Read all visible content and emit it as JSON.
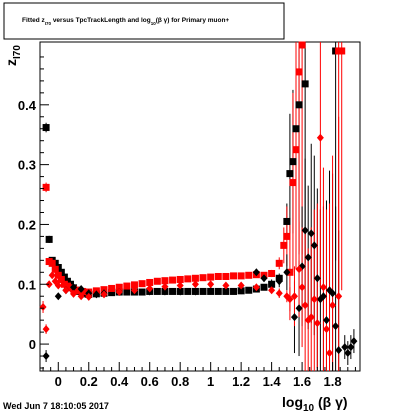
{
  "chart_data": {
    "type": "scatter",
    "title": {
      "prefix": "Fitted  z",
      "sub1": "I70",
      "middle": "  versus TpcTrackLength and log",
      "sub2": "10",
      "suffix": "(β γ) for Primary muon+"
    },
    "xlabel": {
      "main": "log",
      "sub": "10",
      "rest": " (β γ)"
    },
    "ylabel": {
      "main": "z",
      "sub": "I70"
    },
    "xlim": [
      -0.12,
      1.98
    ],
    "ylim": [
      -0.045,
      0.505
    ],
    "x_ticks": [
      0,
      0.2,
      0.4,
      0.6,
      0.8,
      1,
      1.2,
      1.4,
      1.6,
      1.8
    ],
    "x_tick_labels": [
      "0",
      "0.2",
      "0.4",
      "0.6",
      "0.8",
      "1",
      "1.2",
      "1.4",
      "1.6",
      "1.8"
    ],
    "y_ticks": [
      0,
      0.1,
      0.2,
      0.3,
      0.4
    ],
    "y_tick_labels": [
      "0",
      "0.1",
      "0.2",
      "0.3",
      "0.4"
    ],
    "grid": false,
    "legend": "none",
    "series": [
      {
        "marker": "square",
        "color": "#000000",
        "x": [
          -0.08,
          -0.06,
          -0.04,
          -0.02,
          0.0,
          0.02,
          0.04,
          0.06,
          0.08,
          0.1,
          0.12,
          0.14,
          0.16,
          0.18,
          0.2,
          0.25,
          0.3,
          0.35,
          0.4,
          0.45,
          0.5,
          0.55,
          0.6,
          0.65,
          0.7,
          0.75,
          0.8,
          0.85,
          0.9,
          0.95,
          1.0,
          1.05,
          1.1,
          1.15,
          1.2,
          1.25,
          1.3,
          1.35,
          1.4,
          1.45,
          1.5,
          1.52,
          1.54,
          1.56,
          1.58,
          1.62,
          1.82
        ],
        "y": [
          0.362,
          0.175,
          0.14,
          0.135,
          0.128,
          0.12,
          0.112,
          0.105,
          0.1,
          0.094,
          0.09,
          0.088,
          0.086,
          0.084,
          0.083,
          0.084,
          0.085,
          0.086,
          0.087,
          0.087,
          0.087,
          0.087,
          0.088,
          0.088,
          0.088,
          0.088,
          0.088,
          0.088,
          0.088,
          0.088,
          0.088,
          0.088,
          0.088,
          0.088,
          0.089,
          0.09,
          0.092,
          0.095,
          0.1,
          0.11,
          0.205,
          0.285,
          0.305,
          0.36,
          0.4,
          0.435,
          0.49
        ],
        "err": [
          0.008,
          0.006,
          0.004,
          0.003,
          0.002,
          0.002,
          0.002,
          0.002,
          0.002,
          0.002,
          0.002,
          0.002,
          0.002,
          0.002,
          0.002,
          0.002,
          0.002,
          0.002,
          0.002,
          0.002,
          0.002,
          0.002,
          0.002,
          0.002,
          0.002,
          0.002,
          0.002,
          0.002,
          0.002,
          0.002,
          0.002,
          0.002,
          0.002,
          0.002,
          0.002,
          0.003,
          0.004,
          0.005,
          0.006,
          0.008,
          0.03,
          0.1,
          0.12,
          0.2,
          0.25,
          0.3,
          0.35
        ]
      },
      {
        "marker": "square",
        "color": "#ff0000",
        "x": [
          -0.08,
          -0.06,
          -0.04,
          -0.02,
          0.0,
          0.02,
          0.04,
          0.06,
          0.08,
          0.1,
          0.12,
          0.14,
          0.16,
          0.2,
          0.25,
          0.3,
          0.35,
          0.4,
          0.45,
          0.5,
          0.55,
          0.6,
          0.65,
          0.7,
          0.75,
          0.8,
          0.85,
          0.9,
          0.95,
          1.0,
          1.05,
          1.1,
          1.15,
          1.2,
          1.25,
          1.3,
          1.35,
          1.4,
          1.45,
          1.48,
          1.5,
          1.52,
          1.54,
          1.56,
          1.58,
          1.6,
          1.84,
          1.86
        ],
        "y": [
          0.262,
          0.138,
          0.135,
          0.125,
          0.115,
          0.108,
          0.1,
          0.097,
          0.094,
          0.092,
          0.09,
          0.089,
          0.088,
          0.087,
          0.089,
          0.091,
          0.093,
          0.095,
          0.097,
          0.099,
          0.101,
          0.103,
          0.105,
          0.106,
          0.107,
          0.108,
          0.109,
          0.11,
          0.111,
          0.112,
          0.113,
          0.113,
          0.114,
          0.114,
          0.115,
          0.116,
          0.115,
          0.118,
          0.135,
          0.165,
          0.18,
          0.12,
          0.27,
          0.325,
          0.455,
          0.5,
          0.49,
          0.49
        ],
        "err": [
          0.008,
          0.005,
          0.004,
          0.003,
          0.002,
          0.002,
          0.002,
          0.002,
          0.002,
          0.002,
          0.002,
          0.002,
          0.002,
          0.002,
          0.002,
          0.002,
          0.002,
          0.002,
          0.002,
          0.002,
          0.002,
          0.002,
          0.002,
          0.002,
          0.002,
          0.002,
          0.002,
          0.002,
          0.002,
          0.002,
          0.002,
          0.002,
          0.002,
          0.002,
          0.003,
          0.004,
          0.005,
          0.006,
          0.01,
          0.03,
          0.05,
          0.08,
          0.15,
          0.2,
          0.3,
          0.35,
          0.4,
          0.4
        ]
      },
      {
        "marker": "diamond",
        "color": "#000000",
        "x": [
          -0.08,
          0.0,
          0.05,
          0.1,
          0.15,
          0.2,
          0.25,
          0.3,
          0.4,
          0.5,
          0.6,
          0.7,
          0.8,
          0.9,
          1.0,
          1.1,
          1.2,
          1.3,
          1.35,
          1.4,
          1.45,
          1.5,
          1.55,
          1.58,
          1.6,
          1.62,
          1.64,
          1.66,
          1.68,
          1.7,
          1.72,
          1.74,
          1.76,
          1.78,
          1.8,
          1.82,
          1.84,
          1.88,
          1.9,
          1.92,
          1.94
        ],
        "y": [
          -0.02,
          0.08,
          0.09,
          0.095,
          0.092,
          0.085,
          0.083,
          0.085,
          0.087,
          0.088,
          0.088,
          0.088,
          0.088,
          0.088,
          0.089,
          0.09,
          0.09,
          0.12,
          0.11,
          0.1,
          0.105,
          0.12,
          0.045,
          0.06,
          0.13,
          0.19,
          0.145,
          0.185,
          0.165,
          0.11,
          0.075,
          0.08,
          0.04,
          0.09,
          0.085,
          0.03,
          -0.01,
          -0.005,
          -0.015,
          -0.005,
          0.005
        ],
        "err": [
          0.01,
          0.004,
          0.003,
          0.002,
          0.002,
          0.002,
          0.002,
          0.002,
          0.002,
          0.002,
          0.002,
          0.002,
          0.002,
          0.002,
          0.002,
          0.002,
          0.003,
          0.005,
          0.006,
          0.008,
          0.01,
          0.03,
          0.06,
          0.08,
          0.1,
          0.12,
          0.12,
          0.15,
          0.15,
          0.15,
          0.15,
          0.15,
          0.2,
          0.2,
          0.2,
          0.2,
          0.2,
          0.02,
          0.02,
          0.02,
          0.02
        ]
      },
      {
        "marker": "diamond",
        "color": "#ff0000",
        "x": [
          -0.1,
          -0.08,
          -0.06,
          -0.04,
          -0.02,
          0.0,
          0.05,
          0.1,
          0.15,
          0.2,
          0.3,
          0.4,
          0.5,
          0.6,
          0.7,
          0.8,
          0.9,
          1.0,
          1.1,
          1.2,
          1.3,
          1.4,
          1.45,
          1.5,
          1.52,
          1.55,
          1.58,
          1.6,
          1.62,
          1.64,
          1.66,
          1.68,
          1.7,
          1.72,
          1.74,
          1.76,
          1.78,
          1.8,
          1.84
        ],
        "y": [
          0.062,
          0.025,
          0.1,
          0.115,
          0.105,
          0.098,
          0.09,
          0.084,
          0.08,
          0.079,
          0.083,
          0.087,
          0.09,
          0.093,
          0.096,
          0.098,
          0.1,
          0.1,
          0.098,
          0.098,
          0.095,
          0.09,
          0.085,
          0.08,
          0.075,
          0.08,
          0.125,
          0.095,
          0.065,
          0.04,
          0.045,
          0.075,
          0.035,
          0.345,
          0.095,
          0.025,
          -0.015,
          0.065,
          0.08
        ],
        "err": [
          0.01,
          0.008,
          0.004,
          0.003,
          0.003,
          0.002,
          0.002,
          0.002,
          0.002,
          0.002,
          0.002,
          0.002,
          0.002,
          0.002,
          0.002,
          0.002,
          0.002,
          0.002,
          0.002,
          0.002,
          0.003,
          0.005,
          0.008,
          0.01,
          0.02,
          0.05,
          0.08,
          0.1,
          0.12,
          0.12,
          0.15,
          0.15,
          0.2,
          0.25,
          0.2,
          0.2,
          0.25,
          0.25,
          0.3
        ]
      }
    ]
  },
  "footer": {
    "timestamp": "Wed Jun  7 18:10:05 2017"
  }
}
